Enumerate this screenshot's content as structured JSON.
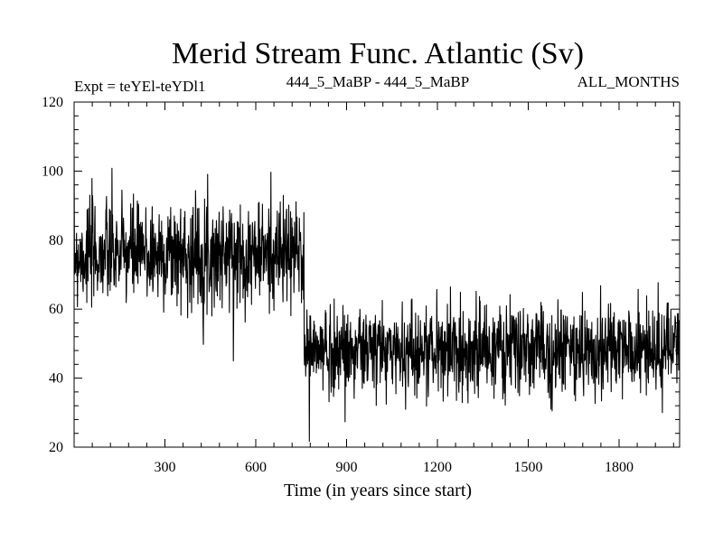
{
  "chart_data": {
    "type": "line",
    "title": "Merid Stream Func. Atlantic (Sv)",
    "subtitle_left": "Expt = teYEl-teYDl1",
    "subtitle_center": "444_5_MaBP - 444_5_MaBP",
    "subtitle_right": "ALL_MONTHS",
    "xlabel": "Time (in years since start)",
    "ylabel": "",
    "xlim": [
      0,
      2000
    ],
    "ylim": [
      20,
      120
    ],
    "x_ticks": [
      300,
      600,
      900,
      1200,
      1500,
      1800
    ],
    "y_ticks": [
      20,
      40,
      60,
      80,
      100,
      120
    ],
    "grid": false,
    "line_color": "#000000",
    "series": [
      {
        "x_start": 0,
        "x_end": 2000,
        "regimes": [
          {
            "from": 0,
            "to": 760,
            "mean": 76,
            "spread": 7.5,
            "min": 45,
            "max": 104
          },
          {
            "from": 760,
            "to": 2000,
            "mean": 48,
            "spread": 6.5,
            "min": 20,
            "max": 72
          }
        ],
        "seed": 7
      }
    ]
  }
}
